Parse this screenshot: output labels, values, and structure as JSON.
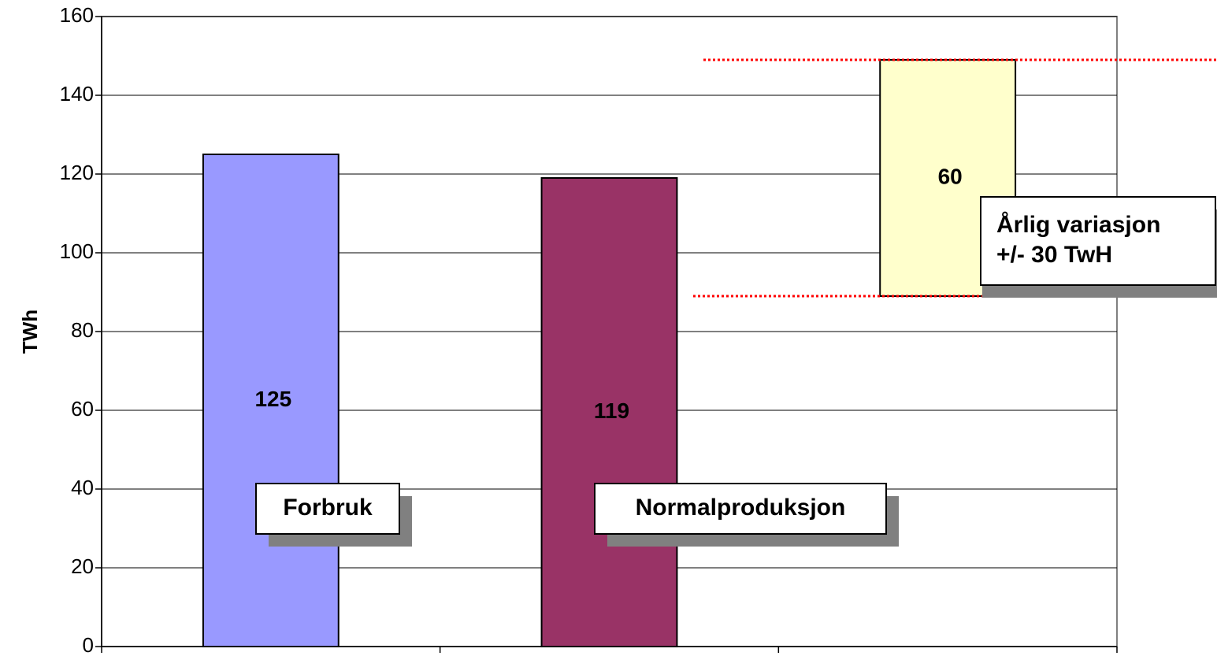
{
  "chart_data": {
    "type": "bar",
    "y_label": "TWh",
    "categories": [
      null,
      null,
      null
    ],
    "values": [
      125,
      119,
      60
    ],
    "starts": [
      0,
      0,
      89
    ],
    "colors": [
      "#9999ff",
      "#993366",
      "#ffffcc"
    ],
    "reference_lines": [
      89,
      149
    ],
    "reference_color": "#ff0000",
    "annotations": [
      [
        "Forbruk"
      ],
      [
        "Normalproduksjon"
      ],
      [
        "Årlig variasjon",
        "+/- 30 TwH"
      ]
    ],
    "ylim": [
      0,
      160
    ],
    "yticks": [
      0,
      20,
      40,
      60,
      80,
      100,
      120,
      140,
      160
    ],
    "grid": true
  }
}
